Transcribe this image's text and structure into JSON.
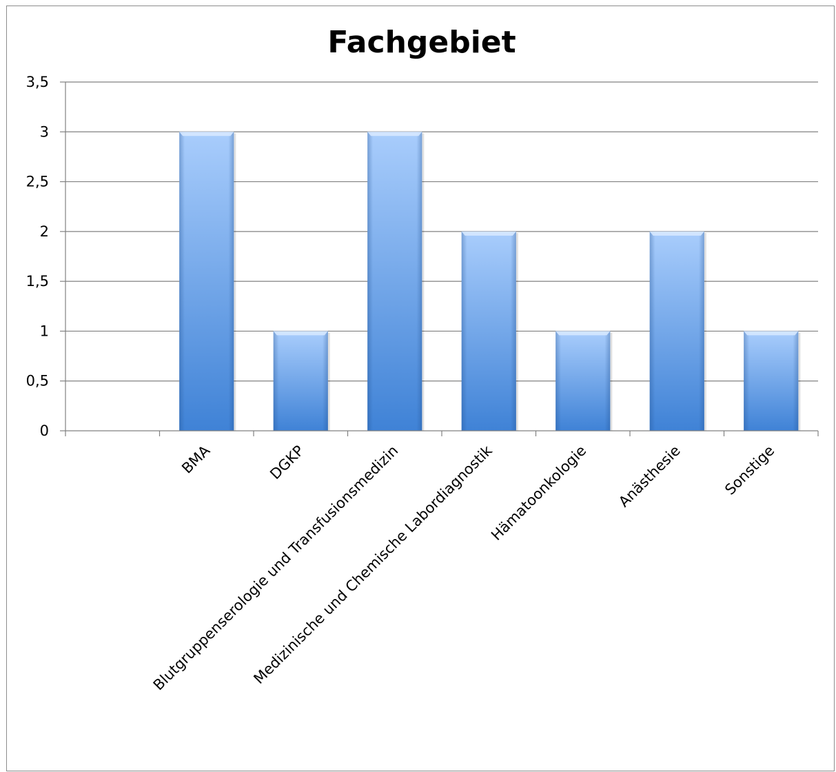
{
  "chart_data": {
    "type": "bar",
    "title": "Fachgebiet",
    "categories": [
      "",
      "BMA",
      "DGKP",
      "Blutgruppenserologie und Transfusionsmedizin",
      "Medizinische und Chemische Labordiagnostik",
      "Hämatoonkologie",
      "Anästhesie",
      "Sonstige"
    ],
    "values": [
      null,
      3,
      1,
      3,
      2,
      1,
      2,
      1
    ],
    "ylim": [
      0,
      3.5
    ],
    "yticks": [
      0,
      0.5,
      1,
      1.5,
      2,
      2.5,
      3,
      3.5
    ],
    "ytick_labels": [
      "0",
      "0,5",
      "1",
      "1,5",
      "2",
      "2,5",
      "3",
      "3,5"
    ],
    "xlabel": "",
    "ylabel": "",
    "grid": true,
    "legend": "none",
    "colors": {
      "bar_top": "#a9cdfc",
      "bar_bottom": "#3f82d6",
      "bar_cap": "#d6e8ff",
      "grid": "#808080",
      "axis": "#808080"
    }
  }
}
